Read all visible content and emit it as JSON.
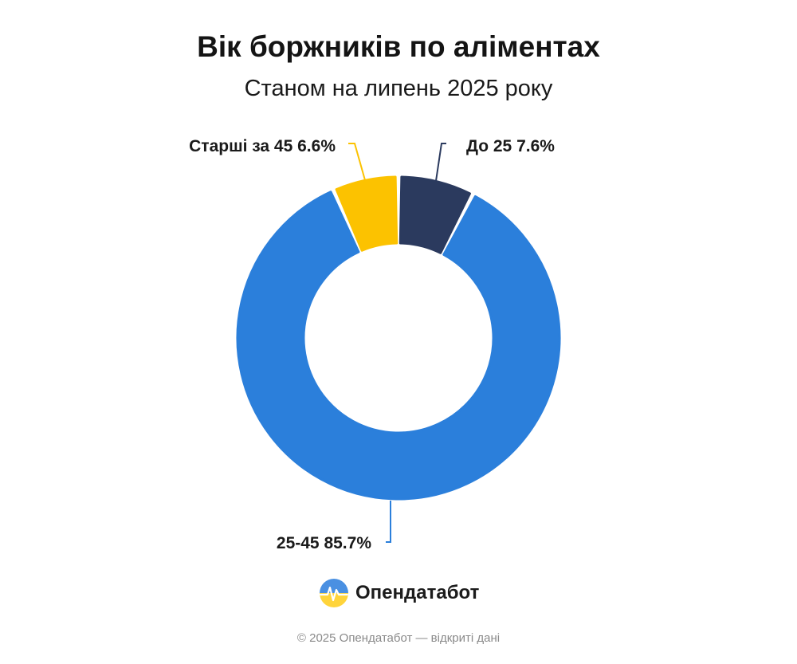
{
  "title": "Вік боржників по аліментах",
  "subtitle": "Станом на липень 2025 року",
  "chart_data": {
    "type": "pie",
    "title": "Вік боржників по аліментах",
    "subtitle": "Станом на липень 2025 року",
    "categories": [
      "До 25",
      "25-45",
      "Старші за 45"
    ],
    "values": [
      7.6,
      85.7,
      6.6
    ],
    "unit": "%",
    "donut": true,
    "colors": [
      "#2b3a5e",
      "#2b7fdb",
      "#fcc200"
    ],
    "labels": [
      "До 25 7.6%",
      "25-45 85.7%",
      "Старші за 45 6.6%"
    ]
  },
  "brand": {
    "name": "Опендатабот",
    "icon": "opendatabot-logo-icon"
  },
  "footer": "© 2025 Опендатабот — відкриті дані"
}
